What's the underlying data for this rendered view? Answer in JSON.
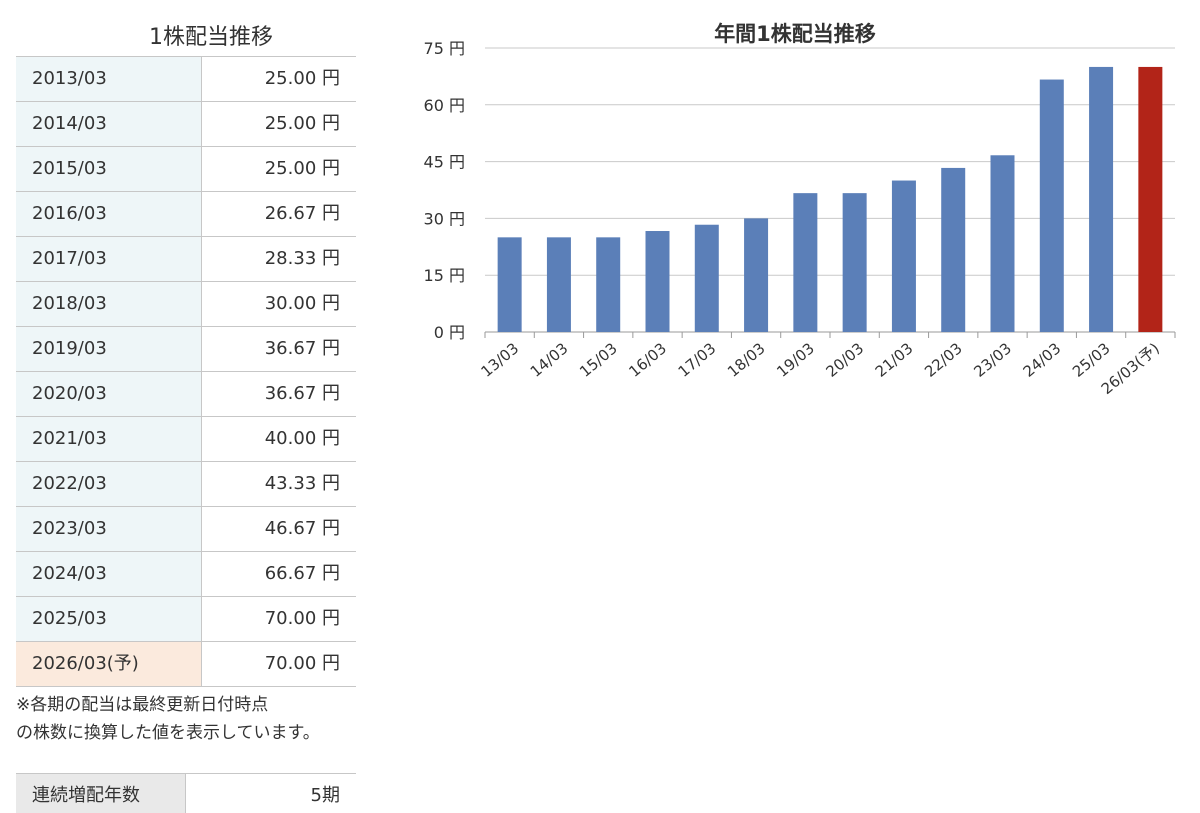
{
  "table": {
    "title": "1株配当推移",
    "rows": [
      {
        "year": "2013/03",
        "value": "25.00 円"
      },
      {
        "year": "2014/03",
        "value": "25.00 円"
      },
      {
        "year": "2015/03",
        "value": "25.00 円"
      },
      {
        "year": "2016/03",
        "value": "26.67 円"
      },
      {
        "year": "2017/03",
        "value": "28.33 円"
      },
      {
        "year": "2018/03",
        "value": "30.00 円"
      },
      {
        "year": "2019/03",
        "value": "36.67 円"
      },
      {
        "year": "2020/03",
        "value": "36.67 円"
      },
      {
        "year": "2021/03",
        "value": "40.00 円"
      },
      {
        "year": "2022/03",
        "value": "43.33 円"
      },
      {
        "year": "2023/03",
        "value": "46.67 円"
      },
      {
        "year": "2024/03",
        "value": "66.67 円"
      },
      {
        "year": "2025/03",
        "value": "70.00 円"
      },
      {
        "year": "2026/03(予)",
        "value": "70.00 円"
      }
    ],
    "note_line1": "※各期の配当は最終更新日付時点",
    "note_line2": "の株数に換算した値を表示しています。",
    "streak_label": "連続増配年数",
    "streak_value": "5期"
  },
  "colors": {
    "bar": "#5b7fb8",
    "forecast_bar": "#b22418",
    "year_cell_bg": "#eef6f8",
    "forecast_year_cell_bg": "#fbeadd",
    "streak_label_bg": "#e9e9e9"
  },
  "chart_data": {
    "type": "bar",
    "title": "年間1株配当推移",
    "categories": [
      "13/03",
      "14/03",
      "15/03",
      "16/03",
      "17/03",
      "18/03",
      "19/03",
      "20/03",
      "21/03",
      "22/03",
      "23/03",
      "24/03",
      "25/03",
      "26/03(予)"
    ],
    "values": [
      25.0,
      25.0,
      25.0,
      26.67,
      28.33,
      30.0,
      36.67,
      36.67,
      40.0,
      43.33,
      46.67,
      66.67,
      70.0,
      70.0
    ],
    "forecast_index": 13,
    "ylim": [
      0,
      75
    ],
    "yticks": [
      0,
      15,
      30,
      45,
      60,
      75
    ],
    "ytick_labels": [
      "0 円",
      "15 円",
      "30 円",
      "45 円",
      "60 円",
      "75 円"
    ],
    "grid": true,
    "xlabel": "",
    "ylabel": ""
  }
}
